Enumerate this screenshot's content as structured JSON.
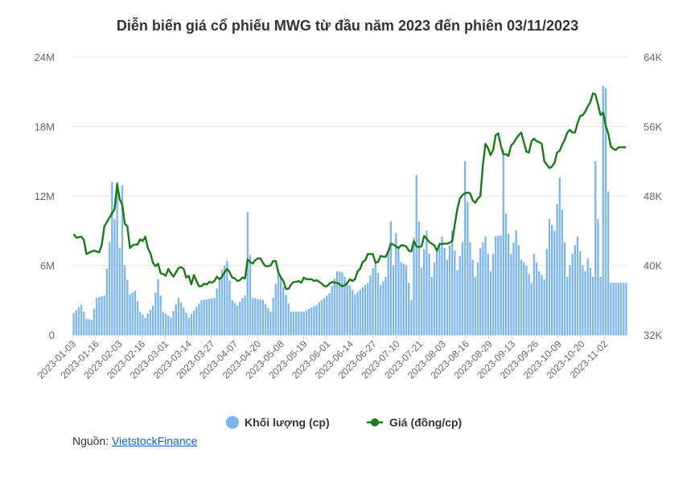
{
  "chart_data": {
    "type": "bar+line",
    "title": "Diễn biến giá cổ phiếu MWG từ đầu năm 2023 đến phiên 03/11/2023",
    "y_left": {
      "ticks": [
        0,
        6000000,
        12000000,
        18000000,
        24000000
      ],
      "tick_labels": [
        "0",
        "6M",
        "12M",
        "18M",
        "24M"
      ],
      "range": [
        0,
        24000000
      ]
    },
    "y_right": {
      "ticks": [
        32000,
        40000,
        48000,
        56000,
        64000
      ],
      "tick_labels": [
        "32K",
        "40K",
        "48K",
        "56K",
        "64K"
      ],
      "range": [
        32000,
        64000
      ]
    },
    "x_tick_labels": [
      "2023-01-03",
      "2023-01-16",
      "2023-02-03",
      "2023-02-16",
      "2023-03-01",
      "2023-03-14",
      "2023-03-27",
      "2023-04-07",
      "2023-04-20",
      "2023-05-08",
      "2023-05-19",
      "2023-06-01",
      "2023-06-14",
      "2023-06-27",
      "2023-07-10",
      "2023-07-21",
      "2023-08-03",
      "2023-08-16",
      "2023-08-29",
      "2023-09-13",
      "2023-09-26",
      "2023-10-09",
      "2023-10-20",
      "2023-11-02"
    ],
    "sessions": 217,
    "grid": true,
    "legend_position": "bottom",
    "volume_series": {
      "name": "Khối lượng (cp)",
      "color": "#7cb5ec",
      "anchors": [
        [
          0,
          1.9
        ],
        [
          3,
          2.6
        ],
        [
          5,
          1.4
        ],
        [
          7,
          1.3
        ],
        [
          9,
          3.2
        ],
        [
          12,
          3.4
        ],
        [
          14,
          8.0
        ],
        [
          15,
          13.2
        ],
        [
          16,
          10.0
        ],
        [
          17,
          13.2
        ],
        [
          18,
          7.5
        ],
        [
          19,
          12.9
        ],
        [
          20,
          6.0
        ],
        [
          22,
          3.5
        ],
        [
          24,
          3.8
        ],
        [
          26,
          2.0
        ],
        [
          28,
          1.5
        ],
        [
          31,
          2.5
        ],
        [
          33,
          4.8
        ],
        [
          35,
          2.0
        ],
        [
          38,
          1.5
        ],
        [
          41,
          3.2
        ],
        [
          45,
          1.5
        ],
        [
          50,
          3.0
        ],
        [
          55,
          3.2
        ],
        [
          58,
          5.6
        ],
        [
          60,
          6.4
        ],
        [
          62,
          3.0
        ],
        [
          64,
          2.5
        ],
        [
          66,
          3.2
        ],
        [
          67,
          3.4
        ],
        [
          68,
          10.6
        ],
        [
          70,
          3.2
        ],
        [
          74,
          3.0
        ],
        [
          77,
          2.0
        ],
        [
          80,
          5.6
        ],
        [
          85,
          2.0
        ],
        [
          90,
          2.0
        ],
        [
          95,
          2.6
        ],
        [
          100,
          3.6
        ],
        [
          103,
          5.5
        ],
        [
          105,
          5.4
        ],
        [
          110,
          3.5
        ],
        [
          115,
          4.5
        ],
        [
          118,
          6.4
        ],
        [
          120,
          4.3
        ],
        [
          122,
          5.0
        ],
        [
          124,
          9.8
        ],
        [
          125,
          6.0
        ],
        [
          126,
          8.8
        ],
        [
          128,
          6.3
        ],
        [
          130,
          6.0
        ],
        [
          132,
          3.0
        ],
        [
          134,
          13.8
        ],
        [
          136,
          5.8
        ],
        [
          138,
          9.0
        ],
        [
          140,
          5.0
        ],
        [
          142,
          7.5
        ],
        [
          144,
          8.5
        ],
        [
          146,
          6.5
        ],
        [
          148,
          9.0
        ],
        [
          150,
          5.6
        ],
        [
          152,
          8.0
        ],
        [
          153,
          15.0
        ],
        [
          155,
          8.0
        ],
        [
          157,
          5.0
        ],
        [
          159,
          7.5
        ],
        [
          161,
          8.5
        ],
        [
          163,
          5.5
        ],
        [
          165,
          8.5
        ],
        [
          167,
          8.6
        ],
        [
          168,
          16.0
        ],
        [
          169,
          10.5
        ],
        [
          171,
          7.0
        ],
        [
          173,
          9.0
        ],
        [
          175,
          6.5
        ],
        [
          177,
          6.0
        ],
        [
          179,
          4.5
        ],
        [
          180,
          7.0
        ],
        [
          182,
          5.5
        ],
        [
          184,
          4.8
        ],
        [
          186,
          10.0
        ],
        [
          188,
          9.0
        ],
        [
          190,
          13.6
        ],
        [
          192,
          8.0
        ],
        [
          193,
          5.0
        ],
        [
          195,
          7.0
        ],
        [
          197,
          8.5
        ],
        [
          199,
          6.0
        ],
        [
          200,
          5.5
        ],
        [
          201,
          6.6
        ],
        [
          203,
          5.0
        ],
        [
          204,
          15.0
        ],
        [
          206,
          5.0
        ],
        [
          207,
          21.5
        ],
        [
          208,
          21.3
        ],
        [
          209,
          12.4
        ],
        [
          210,
          4.5
        ],
        [
          211,
          4.5
        ]
      ]
    },
    "price_series": {
      "name": "Giá (đồng/cp)",
      "color": "#1a7a1a",
      "anchors": [
        [
          0,
          43.6
        ],
        [
          1,
          43.2
        ],
        [
          3,
          43.3
        ],
        [
          4,
          42.9
        ],
        [
          5,
          41.3
        ],
        [
          7,
          41.6
        ],
        [
          8,
          41.7
        ],
        [
          10,
          41.5
        ],
        [
          11,
          42.4
        ],
        [
          12,
          44.5
        ],
        [
          13,
          45.0
        ],
        [
          14,
          45.5
        ],
        [
          16,
          46.5
        ],
        [
          17,
          49.4
        ],
        [
          18,
          47.6
        ],
        [
          19,
          47.0
        ],
        [
          20,
          44.8
        ],
        [
          21,
          44.5
        ],
        [
          22,
          42.0
        ],
        [
          23,
          42.3
        ],
        [
          24,
          42.4
        ],
        [
          25,
          42.4
        ],
        [
          26,
          43.0
        ],
        [
          27,
          42.8
        ],
        [
          28,
          43.3
        ],
        [
          29,
          42.0
        ],
        [
          30,
          41.4
        ],
        [
          31,
          40.3
        ],
        [
          32,
          39.9
        ],
        [
          33,
          40.2
        ],
        [
          34,
          39.1
        ],
        [
          35,
          39.0
        ],
        [
          36,
          38.8
        ],
        [
          37,
          39.6
        ],
        [
          38,
          39.1
        ],
        [
          39,
          38.7
        ],
        [
          40,
          39.2
        ],
        [
          41,
          39.7
        ],
        [
          42,
          39.8
        ],
        [
          43,
          39.6
        ],
        [
          44,
          38.6
        ],
        [
          45,
          38.8
        ],
        [
          46,
          37.8
        ],
        [
          47,
          38.9
        ],
        [
          48,
          38.2
        ],
        [
          49,
          37.6
        ],
        [
          50,
          37.6
        ],
        [
          51,
          37.9
        ],
        [
          52,
          37.8
        ],
        [
          53,
          38.1
        ],
        [
          54,
          38.0
        ],
        [
          55,
          38.2
        ],
        [
          56,
          38.7
        ],
        [
          57,
          38.4
        ],
        [
          58,
          38.7
        ],
        [
          59,
          39.2
        ],
        [
          60,
          39.6
        ],
        [
          61,
          39.2
        ],
        [
          62,
          38.6
        ],
        [
          63,
          38.5
        ],
        [
          64,
          38.2
        ],
        [
          65,
          38.3
        ],
        [
          66,
          38.6
        ],
        [
          67,
          38.5
        ],
        [
          68,
          40.7
        ],
        [
          69,
          40.4
        ],
        [
          70,
          40.2
        ],
        [
          71,
          40.6
        ],
        [
          72,
          40.8
        ],
        [
          73,
          40.8
        ],
        [
          74,
          40.3
        ],
        [
          75,
          39.9
        ],
        [
          76,
          39.9
        ],
        [
          77,
          40.0
        ],
        [
          78,
          40.5
        ],
        [
          79,
          40.5
        ],
        [
          80,
          39.2
        ],
        [
          81,
          38.6
        ],
        [
          82,
          38.2
        ],
        [
          83,
          37.3
        ],
        [
          84,
          37.3
        ],
        [
          85,
          37.8
        ],
        [
          86,
          38.1
        ],
        [
          87,
          38.1
        ],
        [
          88,
          38.2
        ],
        [
          89,
          38.0
        ],
        [
          90,
          38.6
        ],
        [
          91,
          38.4
        ],
        [
          92,
          38.4
        ],
        [
          93,
          38.4
        ],
        [
          94,
          38.2
        ],
        [
          95,
          38.3
        ],
        [
          96,
          38.1
        ],
        [
          97,
          37.9
        ],
        [
          98,
          37.6
        ],
        [
          99,
          37.6
        ],
        [
          100,
          37.9
        ],
        [
          101,
          38.1
        ],
        [
          102,
          38.0
        ],
        [
          103,
          38.0
        ],
        [
          104,
          37.8
        ],
        [
          105,
          37.6
        ],
        [
          106,
          37.7
        ],
        [
          107,
          38.0
        ],
        [
          108,
          38.4
        ],
        [
          109,
          38.2
        ],
        [
          110,
          38.4
        ],
        [
          111,
          39.3
        ],
        [
          112,
          39.6
        ],
        [
          113,
          40.4
        ],
        [
          114,
          40.6
        ],
        [
          115,
          41.3
        ],
        [
          116,
          41.3
        ],
        [
          117,
          41.3
        ],
        [
          118,
          40.3
        ],
        [
          119,
          40.4
        ],
        [
          120,
          41.1
        ],
        [
          121,
          41.0
        ],
        [
          122,
          41.0
        ],
        [
          123,
          41.6
        ],
        [
          124,
          42.5
        ],
        [
          125,
          42.4
        ],
        [
          126,
          42.2
        ],
        [
          127,
          42.0
        ],
        [
          128,
          42.3
        ],
        [
          129,
          42.3
        ],
        [
          130,
          42.2
        ],
        [
          131,
          41.7
        ],
        [
          132,
          41.6
        ],
        [
          133,
          42.8
        ],
        [
          134,
          42.2
        ],
        [
          135,
          42.1
        ],
        [
          136,
          42.2
        ],
        [
          137,
          43.4
        ],
        [
          138,
          43.1
        ],
        [
          139,
          42.7
        ],
        [
          140,
          42.5
        ],
        [
          141,
          42.3
        ],
        [
          142,
          41.7
        ],
        [
          143,
          42.4
        ],
        [
          144,
          42.5
        ],
        [
          145,
          42.5
        ],
        [
          146,
          42.5
        ],
        [
          147,
          42.6
        ],
        [
          148,
          42.8
        ],
        [
          149,
          44.7
        ],
        [
          150,
          46.5
        ],
        [
          151,
          47.7
        ],
        [
          152,
          48.1
        ],
        [
          153,
          48.3
        ],
        [
          154,
          48.4
        ],
        [
          155,
          48.3
        ],
        [
          156,
          47.5
        ],
        [
          157,
          47.2
        ],
        [
          158,
          47.7
        ],
        [
          159,
          48.0
        ],
        [
          160,
          51.6
        ],
        [
          161,
          54.0
        ],
        [
          162,
          53.5
        ],
        [
          163,
          52.7
        ],
        [
          164,
          53.3
        ],
        [
          165,
          55.0
        ],
        [
          166,
          55.2
        ],
        [
          167,
          53.8
        ],
        [
          168,
          52.8
        ],
        [
          169,
          52.8
        ],
        [
          170,
          52.6
        ],
        [
          171,
          53.8
        ],
        [
          172,
          54.1
        ],
        [
          173,
          54.6
        ],
        [
          174,
          55.0
        ],
        [
          175,
          55.3
        ],
        [
          176,
          54.2
        ],
        [
          177,
          53.1
        ],
        [
          178,
          53.0
        ],
        [
          179,
          54.3
        ],
        [
          180,
          54.6
        ],
        [
          181,
          54.3
        ],
        [
          182,
          54.2
        ],
        [
          183,
          54.0
        ],
        [
          184,
          52.0
        ],
        [
          185,
          51.6
        ],
        [
          186,
          51.2
        ],
        [
          187,
          51.4
        ],
        [
          188,
          51.8
        ],
        [
          189,
          53.0
        ],
        [
          190,
          53.2
        ],
        [
          191,
          53.9
        ],
        [
          192,
          54.5
        ],
        [
          193,
          55.3
        ],
        [
          194,
          55.6
        ],
        [
          195,
          55.3
        ],
        [
          196,
          55.3
        ],
        [
          197,
          56.4
        ],
        [
          198,
          57.2
        ],
        [
          199,
          57.3
        ],
        [
          200,
          57.7
        ],
        [
          201,
          58.3
        ],
        [
          202,
          58.8
        ],
        [
          203,
          59.8
        ],
        [
          204,
          59.7
        ],
        [
          205,
          58.5
        ],
        [
          206,
          57.3
        ],
        [
          207,
          57.6
        ],
        [
          208,
          56.1
        ],
        [
          209,
          55.2
        ],
        [
          210,
          53.7
        ],
        [
          211,
          53.4
        ],
        [
          212,
          53.3
        ],
        [
          213,
          53.6
        ]
      ]
    }
  },
  "source_label": "Nguồn: ",
  "source_link": "VietstockFinance"
}
